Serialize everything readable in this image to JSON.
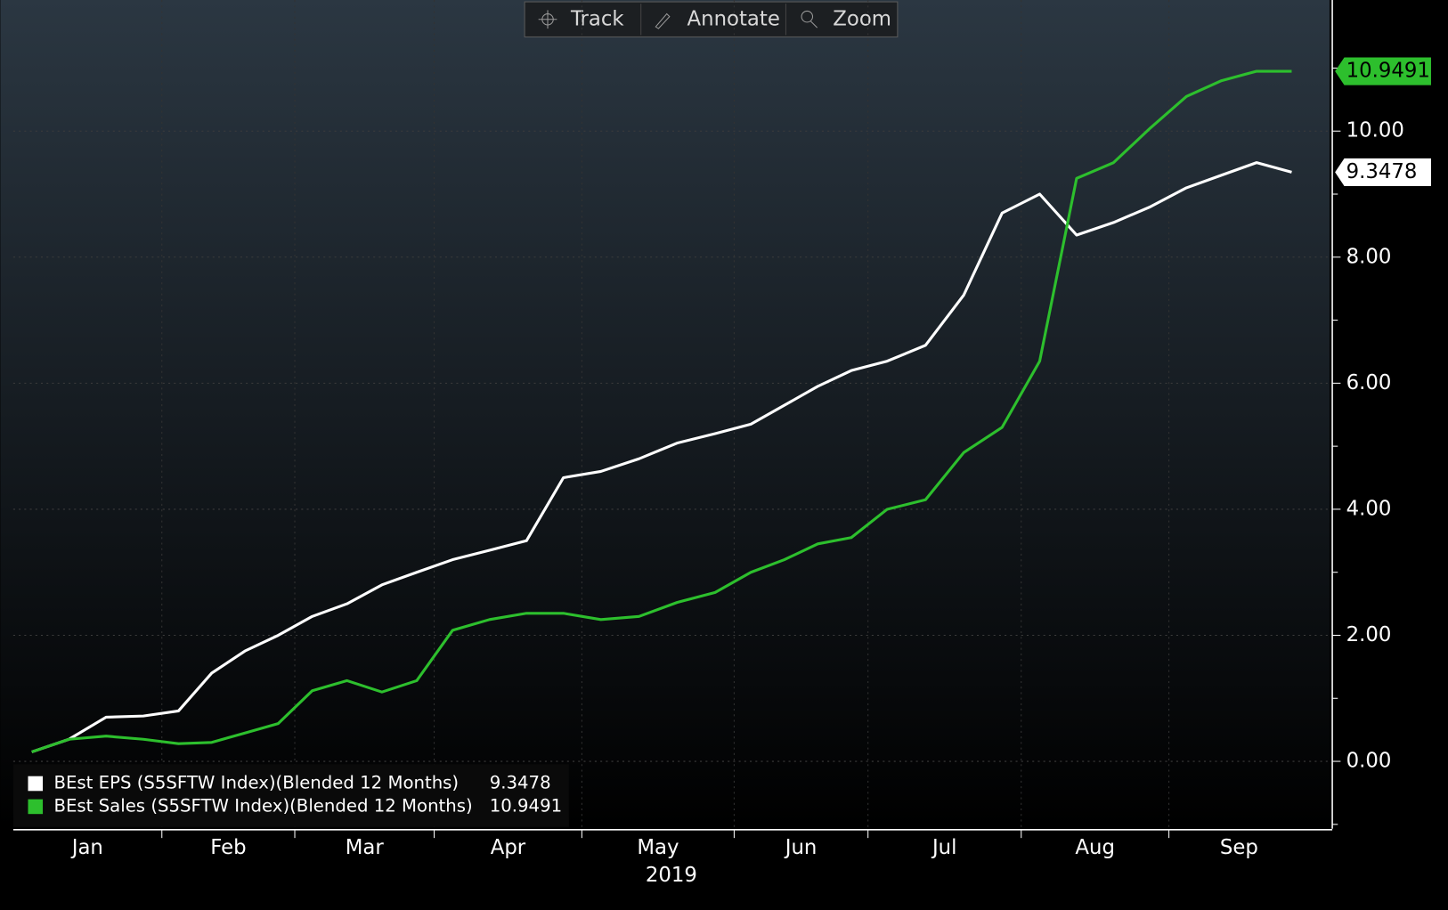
{
  "toolbar": {
    "buttons": [
      "Track",
      "Annotate",
      "Zoom"
    ]
  },
  "chart_data": {
    "type": "line",
    "categories": [
      "Jan",
      "Feb",
      "Mar",
      "Apr",
      "May",
      "Jun",
      "Jul",
      "Aug",
      "Sep"
    ],
    "x_axis_year": "2019",
    "ylim": [
      -1.07,
      12.08
    ],
    "yticks": [
      {
        "value": 0,
        "label": "0.00"
      },
      {
        "value": 2,
        "label": "2.00"
      },
      {
        "value": 4,
        "label": "4.00"
      },
      {
        "value": 6,
        "label": "6.00"
      },
      {
        "value": 8,
        "label": "8.00"
      },
      {
        "value": 10,
        "label": "10.00"
      }
    ],
    "grid": true,
    "legend": "bottom-left",
    "series": [
      {
        "name": "BEst EPS (S5SFTW Index)(Blended 12 Months)",
        "color": "#ffffff",
        "values": [
          [
            0.15,
            0.35,
            0.7,
            0.72
          ],
          [
            0.8,
            1.4,
            1.75,
            2.0
          ],
          [
            2.3,
            2.5,
            2.8,
            3.0
          ],
          [
            3.2,
            3.35,
            3.5,
            4.5
          ],
          [
            4.6,
            4.8,
            5.05,
            5.2
          ],
          [
            5.35,
            5.65,
            5.95,
            6.2
          ],
          [
            6.35,
            6.6,
            7.4,
            8.7
          ],
          [
            9.0,
            8.35,
            8.55,
            8.8
          ],
          [
            9.1,
            9.3,
            9.5,
            9.3478
          ]
        ]
      },
      {
        "name": "BEst Sales (S5SFTW Index)(Blended 12 Months)",
        "color": "#2dbf2d",
        "values": [
          [
            0.15,
            0.35,
            0.4,
            0.35
          ],
          [
            0.28,
            0.3,
            0.45,
            0.6
          ],
          [
            1.12,
            1.28,
            1.1,
            1.28
          ],
          [
            2.08,
            2.25,
            2.35,
            2.35
          ],
          [
            2.25,
            2.3,
            2.52,
            2.68
          ],
          [
            3.0,
            3.2,
            3.45,
            3.55
          ],
          [
            4.0,
            4.15,
            4.9,
            5.3
          ],
          [
            6.35,
            9.25,
            9.5,
            10.05
          ],
          [
            10.55,
            10.8,
            10.95,
            10.9491
          ]
        ]
      }
    ]
  }
}
